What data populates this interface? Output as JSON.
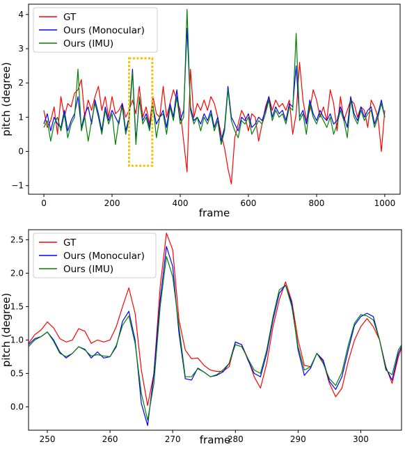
{
  "chart_data": [
    {
      "type": "line",
      "xlabel": "frame",
      "ylabel": "pitch (degree)",
      "xlim": [
        -45,
        1045
      ],
      "ylim": [
        -1.25,
        4.3
      ],
      "xticks": [
        0,
        200,
        400,
        600,
        800,
        1000
      ],
      "yticks": [
        -1,
        0,
        1,
        2,
        3,
        4
      ],
      "grid": false,
      "legend_position": "top-left",
      "highlight_box": {
        "x": [
          250,
          318
        ],
        "y": [
          -0.42,
          2.72
        ],
        "color": "#f5c000",
        "style": "dotted"
      },
      "series": [
        {
          "name": "GT",
          "color": "#ff0000",
          "x": [
            0,
            10,
            20,
            30,
            40,
            50,
            60,
            70,
            80,
            90,
            100,
            110,
            120,
            130,
            140,
            150,
            160,
            170,
            180,
            190,
            200,
            210,
            220,
            230,
            240,
            250,
            260,
            270,
            280,
            290,
            300,
            310,
            320,
            330,
            340,
            350,
            360,
            370,
            380,
            390,
            400,
            410,
            420,
            430,
            440,
            450,
            460,
            470,
            480,
            490,
            500,
            510,
            520,
            530,
            540,
            550,
            560,
            570,
            580,
            590,
            600,
            610,
            620,
            630,
            640,
            650,
            660,
            670,
            680,
            690,
            700,
            710,
            720,
            730,
            740,
            750,
            760,
            770,
            780,
            790,
            800,
            810,
            820,
            830,
            840,
            850,
            860,
            870,
            880,
            890,
            900,
            910,
            920,
            930,
            940,
            950,
            960,
            970,
            980,
            990,
            1000
          ],
          "values": [
            1.2,
            0.7,
            0.9,
            1.3,
            0.5,
            1.6,
            1.0,
            1.4,
            1.3,
            1.7,
            1.8,
            2.1,
            1.0,
            1.5,
            1.2,
            1.6,
            1.9,
            1.2,
            1.6,
            1.0,
            1.6,
            1.1,
            1.2,
            1.4,
            1.0,
            1.2,
            1.5,
            1.1,
            1.9,
            1.0,
            1.3,
            0.8,
            1.6,
            1.1,
            1.0,
            1.9,
            1.0,
            1.4,
            1.8,
            1.5,
            1.2,
            0.3,
            -0.6,
            2.4,
            1.0,
            1.4,
            1.2,
            1.5,
            1.2,
            1.6,
            1.4,
            1.0,
            0.5,
            0.1,
            -0.5,
            -0.95,
            0.4,
            0.8,
            1.2,
            1.0,
            0.6,
            1.1,
            1.0,
            0.3,
            0.8,
            1.3,
            1.6,
            1.2,
            1.5,
            1.3,
            1.4,
            1.2,
            1.5,
            0.5,
            1.1,
            2.6,
            1.5,
            0.9,
            1.2,
            1.8,
            1.5,
            1.0,
            1.3,
            0.9,
            1.8,
            1.4,
            0.6,
            1.6,
            0.9,
            1.2,
            1.5,
            1.4,
            1.0,
            1.3,
            1.2,
            0.7,
            1.5,
            1.3,
            1.0,
            0.0,
            1.2
          ]
        },
        {
          "name": "Ours (Monocular)",
          "color": "#0000ff",
          "x": [
            0,
            10,
            20,
            30,
            40,
            50,
            60,
            70,
            80,
            90,
            100,
            110,
            120,
            130,
            140,
            150,
            160,
            170,
            180,
            190,
            200,
            210,
            220,
            230,
            240,
            250,
            260,
            270,
            280,
            290,
            300,
            310,
            320,
            330,
            340,
            350,
            360,
            370,
            380,
            390,
            400,
            410,
            420,
            430,
            440,
            450,
            460,
            470,
            480,
            490,
            500,
            510,
            520,
            530,
            540,
            550,
            560,
            570,
            580,
            590,
            600,
            610,
            620,
            630,
            640,
            650,
            660,
            670,
            680,
            690,
            700,
            710,
            720,
            730,
            740,
            750,
            760,
            770,
            780,
            790,
            800,
            810,
            820,
            830,
            840,
            850,
            860,
            870,
            880,
            890,
            900,
            910,
            920,
            930,
            940,
            950,
            960,
            970,
            980,
            990,
            1000
          ],
          "values": [
            0.8,
            1.1,
            0.6,
            1.0,
            0.8,
            0.7,
            1.2,
            0.6,
            0.9,
            1.1,
            1.6,
            0.7,
            1.1,
            1.3,
            0.8,
            1.5,
            1.1,
            0.6,
            1.3,
            0.9,
            1.2,
            1.0,
            0.8,
            1.4,
            0.6,
            1.0,
            2.4,
            0.3,
            1.5,
            0.9,
            1.1,
            0.7,
            1.3,
            0.8,
            1.0,
            1.2,
            0.7,
            1.4,
            1.0,
            1.8,
            0.9,
            1.2,
            3.6,
            1.3,
            0.9,
            1.0,
            0.8,
            1.1,
            0.9,
            1.2,
            0.7,
            1.0,
            0.3,
            0.7,
            1.9,
            1.0,
            0.8,
            0.6,
            1.0,
            0.9,
            1.1,
            0.7,
            0.8,
            1.0,
            0.9,
            1.2,
            1.6,
            1.0,
            1.3,
            1.1,
            1.2,
            0.9,
            1.4,
            1.3,
            2.5,
            1.0,
            1.2,
            0.8,
            1.5,
            1.1,
            0.9,
            1.2,
            1.0,
            0.9,
            1.1,
            0.8,
            0.9,
            1.3,
            1.0,
            0.7,
            1.6,
            1.1,
            0.9,
            1.3,
            1.0,
            1.2,
            1.3,
            0.8,
            1.1,
            1.5,
            1.0
          ]
        },
        {
          "name": "Ours (IMU)",
          "color": "#008000",
          "x": [
            0,
            10,
            20,
            30,
            40,
            50,
            60,
            70,
            80,
            90,
            100,
            110,
            120,
            130,
            140,
            150,
            160,
            170,
            180,
            190,
            200,
            210,
            220,
            230,
            240,
            250,
            260,
            270,
            280,
            290,
            300,
            310,
            320,
            330,
            340,
            350,
            360,
            370,
            380,
            390,
            400,
            410,
            420,
            430,
            440,
            450,
            460,
            470,
            480,
            490,
            500,
            510,
            520,
            530,
            540,
            550,
            560,
            570,
            580,
            590,
            600,
            610,
            620,
            630,
            640,
            650,
            660,
            670,
            680,
            690,
            700,
            710,
            720,
            730,
            740,
            750,
            760,
            770,
            780,
            790,
            800,
            810,
            820,
            830,
            840,
            850,
            860,
            870,
            880,
            890,
            900,
            910,
            920,
            930,
            940,
            950,
            960,
            970,
            980,
            990,
            1000
          ],
          "values": [
            0.7,
            0.9,
            0.3,
            0.8,
            1.0,
            0.6,
            1.1,
            0.4,
            0.8,
            1.0,
            2.4,
            0.6,
            1.0,
            0.3,
            0.9,
            1.4,
            1.0,
            0.5,
            1.2,
            0.8,
            1.1,
            0.2,
            0.9,
            1.3,
            0.5,
            0.9,
            2.3,
            0.2,
            1.6,
            0.8,
            1.0,
            0.6,
            1.4,
            0.4,
            1.0,
            1.1,
            0.5,
            1.3,
            0.9,
            1.6,
            0.8,
            1.0,
            4.15,
            1.2,
            0.8,
            1.0,
            0.6,
            1.0,
            0.8,
            1.1,
            0.6,
            0.9,
            0.2,
            0.6,
            1.8,
            0.9,
            0.6,
            0.4,
            0.9,
            0.8,
            1.0,
            0.5,
            0.7,
            0.9,
            0.8,
            1.1,
            1.5,
            0.9,
            1.2,
            1.0,
            1.1,
            0.8,
            1.3,
            1.2,
            3.45,
            0.9,
            1.1,
            0.5,
            1.4,
            1.0,
            0.8,
            1.1,
            0.9,
            0.7,
            1.0,
            0.5,
            0.8,
            1.2,
            0.9,
            0.4,
            1.5,
            1.0,
            0.8,
            1.2,
            0.9,
            1.1,
            1.2,
            0.7,
            1.0,
            1.4,
            1.0
          ]
        }
      ]
    },
    {
      "type": "line",
      "xlabel": "frame",
      "ylabel": "pitch (degree)",
      "xlim": [
        247,
        306.5
      ],
      "ylim": [
        -0.35,
        2.65
      ],
      "xticks": [
        250,
        260,
        270,
        280,
        290,
        300
      ],
      "yticks": [
        0.0,
        0.5,
        1.0,
        1.5,
        2.0,
        2.5
      ],
      "grid": false,
      "legend_position": "top-left",
      "series": [
        {
          "name": "GT",
          "color": "#ff0000",
          "x": [
            247,
            248,
            249,
            250,
            251,
            252,
            253,
            254,
            255,
            256,
            257,
            258,
            259,
            260,
            261,
            262,
            263,
            264,
            265,
            266,
            267,
            268,
            269,
            270,
            271,
            272,
            273,
            274,
            275,
            276,
            277,
            278,
            279,
            280,
            281,
            282,
            283,
            284,
            285,
            286,
            287,
            288,
            289,
            290,
            291,
            292,
            293,
            294,
            295,
            296,
            297,
            298,
            299,
            300,
            301,
            302,
            303,
            304,
            305,
            306,
            307
          ],
          "values": [
            0.95,
            1.08,
            1.15,
            1.27,
            1.18,
            1.02,
            0.97,
            1.0,
            1.17,
            1.13,
            0.95,
            1.0,
            0.97,
            1.0,
            1.2,
            1.5,
            1.78,
            1.4,
            0.55,
            0.02,
            0.5,
            1.8,
            2.6,
            2.35,
            1.3,
            0.85,
            0.72,
            0.73,
            0.62,
            0.55,
            0.53,
            0.53,
            0.6,
            0.97,
            0.93,
            0.72,
            0.45,
            0.28,
            0.65,
            1.2,
            1.6,
            1.87,
            1.58,
            1.0,
            0.62,
            0.6,
            0.8,
            0.68,
            0.35,
            0.15,
            0.28,
            0.68,
            1.0,
            1.2,
            1.32,
            1.2,
            1.0,
            0.6,
            0.35,
            0.75,
            1.0
          ]
        },
        {
          "name": "Ours (Monocular)",
          "color": "#0000ff",
          "x": [
            247,
            248,
            249,
            250,
            251,
            252,
            253,
            254,
            255,
            256,
            257,
            258,
            259,
            260,
            261,
            262,
            263,
            264,
            265,
            266,
            267,
            268,
            269,
            270,
            271,
            272,
            273,
            274,
            275,
            276,
            277,
            278,
            279,
            280,
            281,
            282,
            283,
            284,
            285,
            286,
            287,
            288,
            289,
            290,
            291,
            292,
            293,
            294,
            295,
            296,
            297,
            298,
            299,
            300,
            301,
            302,
            303,
            304,
            305,
            306,
            307
          ],
          "values": [
            0.93,
            1.02,
            1.05,
            1.12,
            1.0,
            0.82,
            0.73,
            0.8,
            0.9,
            0.86,
            0.73,
            0.82,
            0.73,
            0.75,
            0.9,
            1.28,
            1.43,
            1.0,
            0.05,
            -0.28,
            0.5,
            1.6,
            2.4,
            2.1,
            1.1,
            0.42,
            0.4,
            0.58,
            0.52,
            0.45,
            0.47,
            0.52,
            0.65,
            0.97,
            0.93,
            0.7,
            0.5,
            0.45,
            0.8,
            1.3,
            1.7,
            1.82,
            1.55,
            0.85,
            0.47,
            0.58,
            0.8,
            0.7,
            0.38,
            0.26,
            0.45,
            0.85,
            1.22,
            1.35,
            1.4,
            1.35,
            1.0,
            0.58,
            0.4,
            0.8,
            1.0
          ]
        },
        {
          "name": "Ours (IMU)",
          "color": "#008000",
          "x": [
            247,
            248,
            249,
            250,
            251,
            252,
            253,
            254,
            255,
            256,
            257,
            258,
            259,
            260,
            261,
            262,
            263,
            264,
            265,
            266,
            267,
            268,
            269,
            270,
            271,
            272,
            273,
            274,
            275,
            276,
            277,
            278,
            279,
            280,
            281,
            282,
            283,
            284,
            285,
            286,
            287,
            288,
            289,
            290,
            291,
            292,
            293,
            294,
            295,
            296,
            297,
            298,
            299,
            300,
            301,
            302,
            303,
            304,
            305,
            306,
            307
          ],
          "values": [
            0.9,
            1.0,
            1.05,
            1.12,
            0.98,
            0.8,
            0.75,
            0.8,
            0.9,
            0.85,
            0.76,
            0.78,
            0.76,
            0.75,
            0.92,
            1.22,
            1.36,
            0.95,
            0.2,
            -0.2,
            0.35,
            1.5,
            2.25,
            1.95,
            1.2,
            0.45,
            0.45,
            0.57,
            0.52,
            0.45,
            0.48,
            0.55,
            0.65,
            0.93,
            0.9,
            0.72,
            0.55,
            0.5,
            0.85,
            1.35,
            1.75,
            1.82,
            1.5,
            0.9,
            0.55,
            0.6,
            0.8,
            0.65,
            0.42,
            0.32,
            0.52,
            0.92,
            1.25,
            1.38,
            1.36,
            1.3,
            1.0,
            0.55,
            0.48,
            0.85,
            1.0
          ]
        }
      ]
    }
  ]
}
